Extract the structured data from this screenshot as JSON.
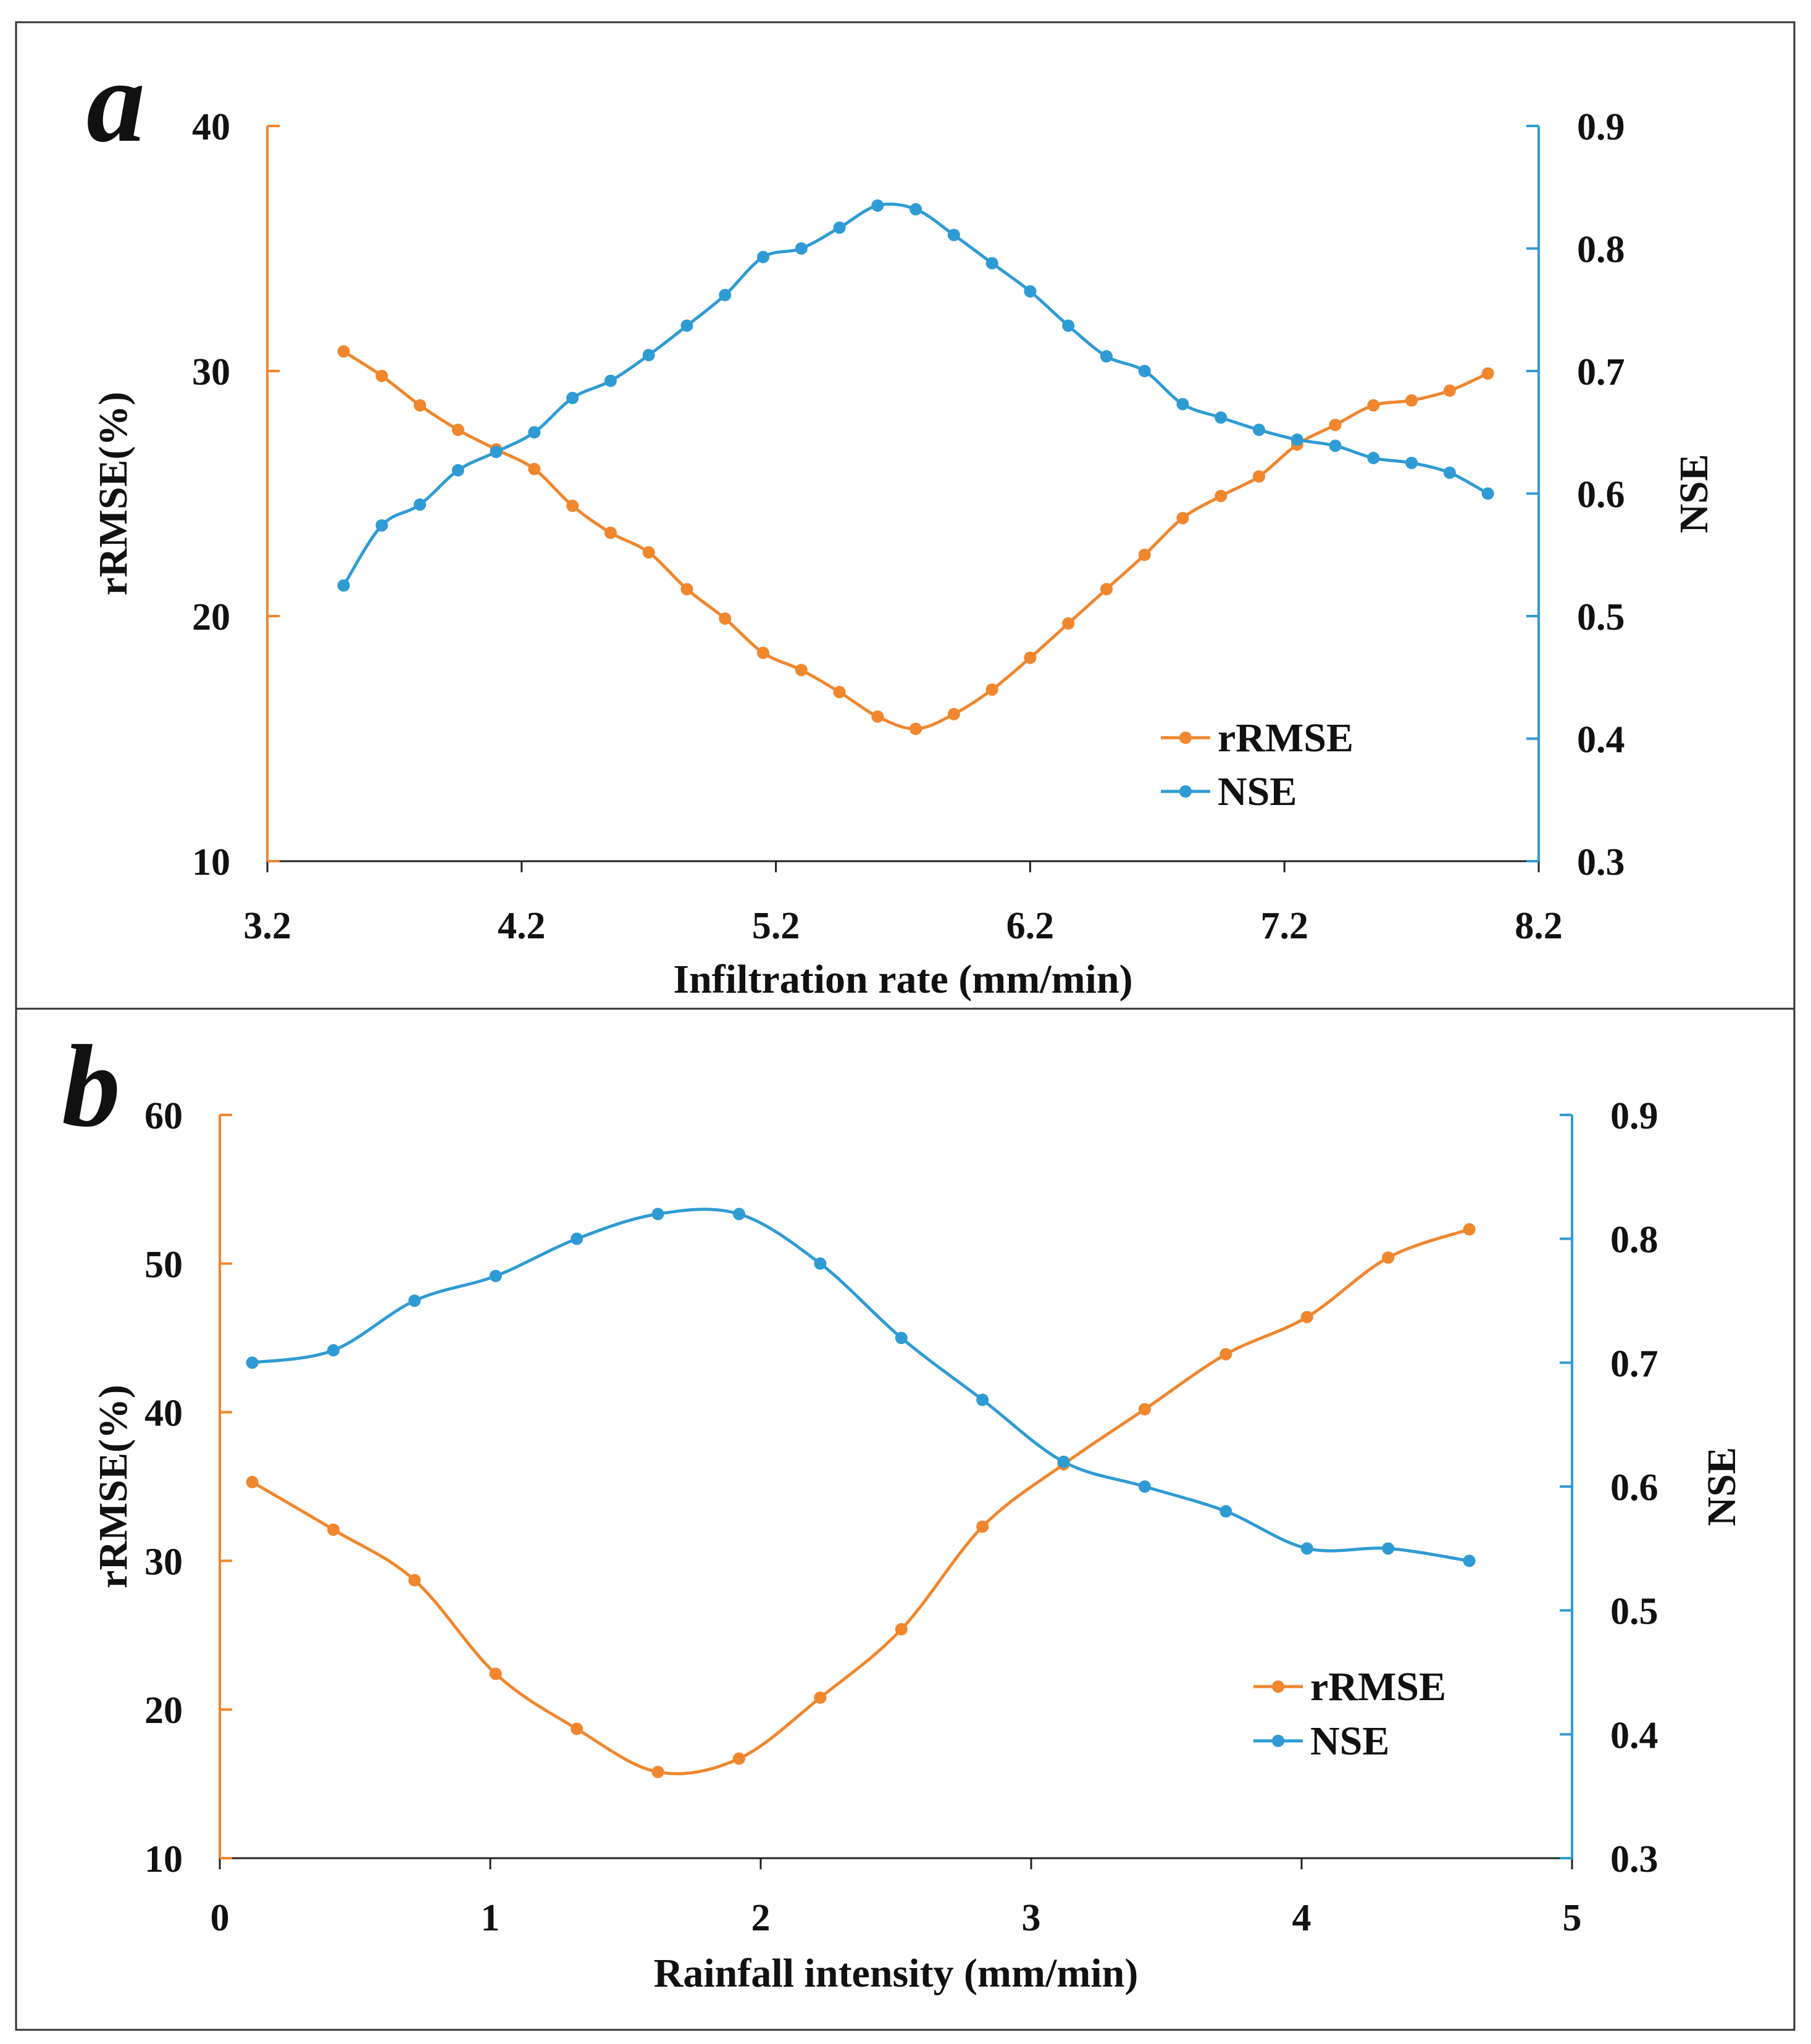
{
  "colors": {
    "rrmse": "#f0862e",
    "nse": "#2f9bd4",
    "text": "#111111",
    "frame": "#333333"
  },
  "chart_data": [
    {
      "type": "line",
      "panel": "a",
      "xlabel": "Infiltration rate (mm/min)",
      "ylabel": "rRMSE(%)",
      "y2label": "NSE",
      "xlim": [
        3.2,
        8.2
      ],
      "ylim": [
        10,
        40
      ],
      "y2lim": [
        0.3,
        0.9
      ],
      "xticks": [
        "3.2",
        "4.2",
        "5.2",
        "6.2",
        "7.2",
        "8.2"
      ],
      "yticks": [
        "10",
        "20",
        "30",
        "40"
      ],
      "y2ticks": [
        "0.3",
        "0.4",
        "0.5",
        "0.6",
        "0.7",
        "0.8",
        "0.9"
      ],
      "legend": [
        "rRMSE",
        "NSE"
      ],
      "legend_position": "lower-right",
      "series": [
        {
          "name": "rRMSE",
          "axis": "left",
          "x": [
            3.5,
            3.65,
            3.8,
            3.95,
            4.1,
            4.25,
            4.4,
            4.55,
            4.7,
            4.85,
            5.0,
            5.15,
            5.3,
            5.45,
            5.6,
            5.75,
            5.9,
            6.05,
            6.2,
            6.35,
            6.5,
            6.65,
            6.8,
            6.95,
            7.1,
            7.25,
            7.4,
            7.55,
            7.7,
            7.85,
            8.0
          ],
          "values": [
            30.8,
            29.8,
            28.6,
            27.6,
            26.8,
            26.0,
            24.5,
            23.4,
            22.6,
            21.1,
            19.9,
            18.5,
            17.8,
            16.9,
            15.9,
            15.4,
            16.0,
            17.0,
            18.3,
            19.7,
            21.1,
            22.5,
            24.0,
            24.9,
            25.7,
            27.0,
            27.8,
            28.6,
            28.8,
            29.2,
            29.9
          ]
        },
        {
          "name": "NSE",
          "axis": "right",
          "x": [
            3.5,
            3.65,
            3.8,
            3.95,
            4.1,
            4.25,
            4.4,
            4.55,
            4.7,
            4.85,
            5.0,
            5.15,
            5.3,
            5.45,
            5.6,
            5.75,
            5.9,
            6.05,
            6.2,
            6.35,
            6.5,
            6.65,
            6.8,
            6.95,
            7.1,
            7.25,
            7.4,
            7.55,
            7.7,
            7.85,
            8.0
          ],
          "values": [
            0.525,
            0.574,
            0.591,
            0.619,
            0.634,
            0.65,
            0.678,
            0.692,
            0.713,
            0.737,
            0.762,
            0.793,
            0.8,
            0.817,
            0.835,
            0.832,
            0.811,
            0.788,
            0.765,
            0.737,
            0.712,
            0.7,
            0.673,
            0.662,
            0.652,
            0.644,
            0.639,
            0.629,
            0.625,
            0.617,
            0.6
          ]
        }
      ]
    },
    {
      "type": "line",
      "panel": "b",
      "xlabel": "Rainfall intensity (mm/min)",
      "ylabel": "rRMSE(%)",
      "y2label": "NSE",
      "xlim": [
        0,
        5
      ],
      "ylim": [
        10,
        60
      ],
      "y2lim": [
        0.3,
        0.9
      ],
      "xticks": [
        "0",
        "1",
        "2",
        "3",
        "4",
        "5"
      ],
      "yticks": [
        "10",
        "20",
        "30",
        "40",
        "50",
        "60"
      ],
      "y2ticks": [
        "0.3",
        "0.4",
        "0.5",
        "0.6",
        "0.7",
        "0.8",
        "0.9"
      ],
      "legend": [
        "rRMSE",
        "NSE"
      ],
      "legend_position": "lower-right",
      "series": [
        {
          "name": "rRMSE",
          "axis": "left",
          "x": [
            0.12,
            0.42,
            0.72,
            1.02,
            1.32,
            1.62,
            1.92,
            2.22,
            2.52,
            2.82,
            3.12,
            3.42,
            3.72,
            4.02,
            4.32,
            4.62
          ],
          "values": [
            35.3,
            32.1,
            28.7,
            22.4,
            18.7,
            15.8,
            16.7,
            20.8,
            25.4,
            32.3,
            36.5,
            40.2,
            43.9,
            46.4,
            50.4,
            52.3
          ]
        },
        {
          "name": "NSE",
          "axis": "right",
          "x": [
            0.12,
            0.42,
            0.72,
            1.02,
            1.32,
            1.62,
            1.92,
            2.22,
            2.52,
            2.82,
            3.12,
            3.42,
            3.72,
            4.02,
            4.32,
            4.62
          ],
          "values": [
            0.7,
            0.71,
            0.75,
            0.77,
            0.8,
            0.82,
            0.82,
            0.78,
            0.72,
            0.67,
            0.62,
            0.6,
            0.58,
            0.55,
            0.55,
            0.54
          ]
        }
      ]
    }
  ]
}
